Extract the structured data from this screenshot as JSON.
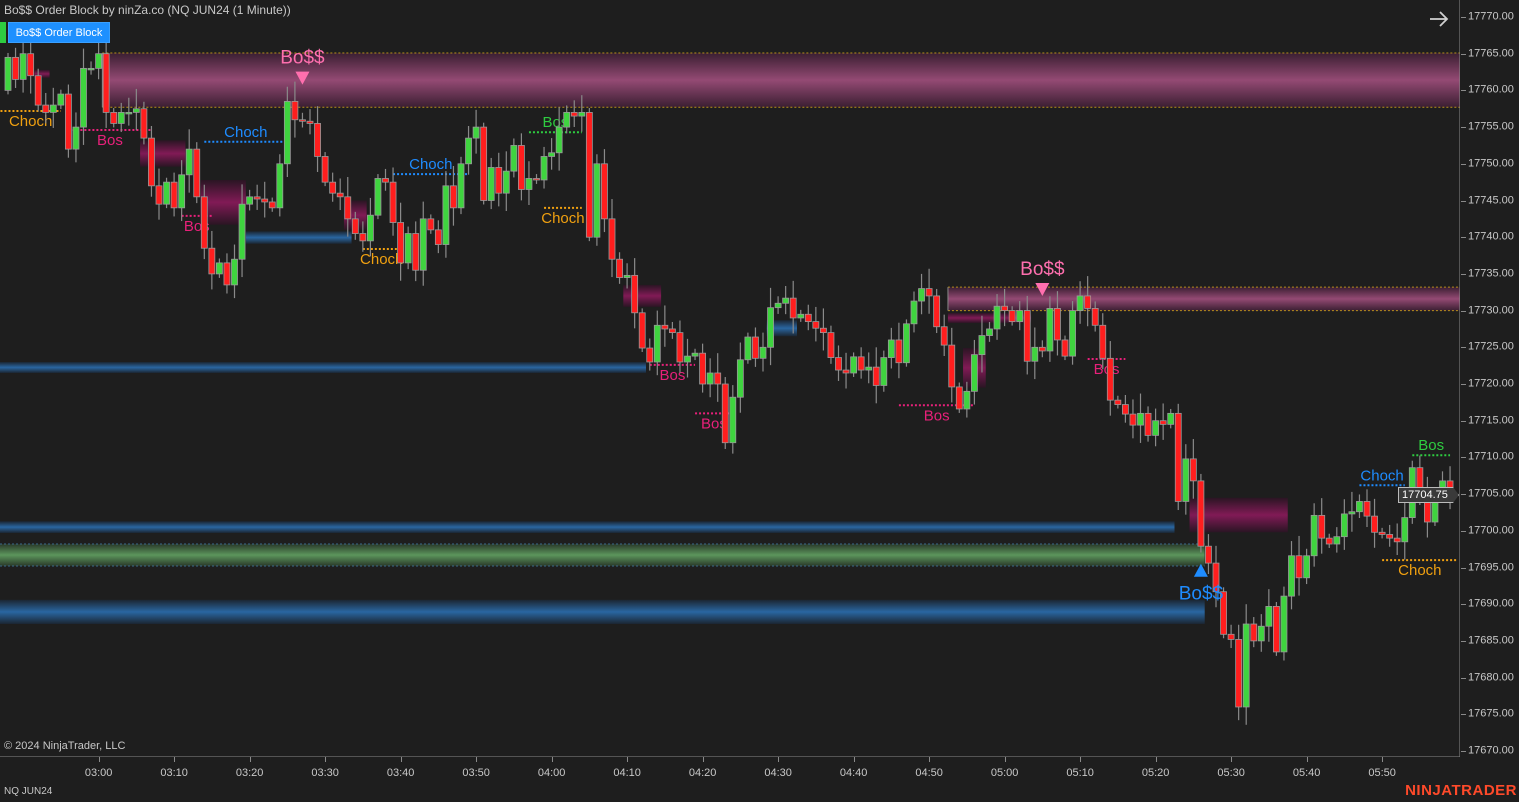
{
  "window": {
    "title": "Bo$$ Order Block by ninZa.co (NQ JUN24 (1 Minute))",
    "indicator_button": "Bo$$ Order Block",
    "copyright": "© 2024 NinjaTrader, LLC",
    "instrument": "NQ JUN24",
    "logo": "NINJATRADER",
    "nav_icon": "arrow-right-icon"
  },
  "colors": {
    "background": "#1e1e1e",
    "bull_candle": "#3fd43f",
    "bear_candle": "#ff1e1e",
    "wick": "#8a8a8a",
    "pink_zone": "#9a4c78",
    "blue_zone": "#2a6aa8",
    "green_zone": "#5f9c5f",
    "magenta_block": "#8c1a5c",
    "bos_bear": "#e8207a",
    "bos_bull": "#2ecc40",
    "choch_bear": "#f0a010",
    "choch_bull": "#1e8cff",
    "signal_bear": "#ff6fae",
    "signal_bull": "#1e8cff",
    "logo": "#ff4a2a"
  },
  "chart_data": {
    "type": "candlestick",
    "title": "Bo$$ Order Block by ninZa.co (NQ JUN24 (1 Minute))",
    "start_time": "02:48",
    "bar_minutes": 1,
    "ylim": [
      17668,
      17772
    ],
    "y_ticks": [
      "17770.00",
      "17765.00",
      "17760.00",
      "17755.00",
      "17750.00",
      "17745.00",
      "17740.00",
      "17735.00",
      "17730.00",
      "17725.00",
      "17720.00",
      "17715.00",
      "17710.00",
      "17705.00",
      "17700.00",
      "17695.00",
      "17690.00",
      "17685.00",
      "17680.00",
      "17675.00",
      "17670.00"
    ],
    "x_ticks": [
      "03:00",
      "03:10",
      "03:20",
      "03:30",
      "03:40",
      "03:50",
      "04:00",
      "04:10",
      "04:20",
      "04:30",
      "04:40",
      "04:50",
      "05:00",
      "05:10",
      "05:20",
      "05:30",
      "05:40",
      "05:50"
    ],
    "last_price": "17704.75",
    "close": [
      17764.5,
      17761.5,
      17765,
      17762,
      17758,
      17757,
      17758,
      17759.5,
      17752,
      17755,
      17763,
      17763,
      17765,
      17757,
      17755.5,
      17757,
      17757,
      17757.5,
      17753.5,
      17747,
      17744.5,
      17747.5,
      17744,
      17748.5,
      17752,
      17745.5,
      17738.5,
      17735,
      17736.5,
      17733.5,
      17737,
      17744.5,
      17745.5,
      17745.2,
      17744.8,
      17744,
      17750,
      17758.5,
      17756,
      17755.8,
      17755.5,
      17751,
      17747.5,
      17746,
      17745.5,
      17742.5,
      17740.5,
      17739.5,
      17743,
      17748,
      17747.5,
      17742,
      17736.5,
      17740.5,
      17735.5,
      17742.5,
      17741,
      17739,
      17747,
      17744,
      17750,
      17753.5,
      17755,
      17745,
      17749.5,
      17746,
      17749,
      17752.5,
      17746.5,
      17748,
      17747.8,
      17751,
      17751.5,
      17755,
      17757,
      17756.5,
      17757,
      17740,
      17750,
      17742.5,
      17737,
      17734.5,
      17734.8,
      17729.7,
      17724.9,
      17723,
      17728,
      17727.5,
      17727,
      17723,
      17723.8,
      17724.2,
      17720,
      17721.5,
      17720,
      17712,
      17718.2,
      17723.3,
      17726.4,
      17723.5,
      17725,
      17730.4,
      17731,
      17731.7,
      17729,
      17729.5,
      17728.5,
      17727.6,
      17727,
      17723.6,
      17721.9,
      17721.5,
      17723.7,
      17721.9,
      17722.3,
      17719.8,
      17723.6,
      17726,
      17722.9,
      17728.2,
      17731.3,
      17733,
      17732,
      17727.8,
      17725.3,
      17719.6,
      17716.6,
      17719,
      17724,
      17726.6,
      17727.5,
      17730.6,
      17730,
      17728.5,
      17730,
      17723.1,
      17725,
      17724.5,
      17730.3,
      17726,
      17723.8,
      17730,
      17732,
      17730.3,
      17728,
      17723.5,
      17717.8,
      17717.2,
      17715.9,
      17714.4,
      17716,
      17713,
      17715,
      17714.5,
      17716,
      17704,
      17709.8,
      17706.8,
      17697.9,
      17695.6,
      17691.7,
      17685.9,
      17685.2,
      17676,
      17687.3,
      17685,
      17687,
      17689.7,
      17683.5,
      17691.1,
      17696.6,
      17693.6,
      17696.6,
      17702.1,
      17699,
      17698.2,
      17699.2,
      17702.3,
      17702.6,
      17704,
      17702,
      17699.8,
      17699.5,
      17699,
      17698.5,
      17701.8,
      17708.6,
      17705,
      17701.2,
      17705.2,
      17706.8,
      17704.75
    ],
    "zones": [
      {
        "kind": "pink",
        "from": "03:01",
        "to": "06:00",
        "top": 17765.1,
        "bottom": 17757.7,
        "border": true
      },
      {
        "kind": "pink",
        "from": "04:53",
        "to": "06:00",
        "top": 17733.2,
        "bottom": 17730.0,
        "border": true
      },
      {
        "kind": "blue",
        "from": "02:47",
        "to": "04:12",
        "top": 17723.0,
        "bottom": 17721.5
      },
      {
        "kind": "blue",
        "from": "02:47",
        "to": "05:22",
        "top": 17701.3,
        "bottom": 17699.7
      },
      {
        "kind": "green",
        "from": "02:47",
        "to": "05:26",
        "top": 17698.2,
        "bottom": 17695.2,
        "border": true
      },
      {
        "kind": "blue",
        "from": "02:47",
        "to": "05:26",
        "top": 17690.6,
        "bottom": 17687.3
      },
      {
        "kind": "blue",
        "from": "03:20",
        "to": "03:33",
        "top": 17740.8,
        "bottom": 17739.1
      },
      {
        "kind": "blue",
        "from": "04:29",
        "to": "04:32",
        "top": 17728.7,
        "bottom": 17726.5
      },
      {
        "kind": "magenta",
        "from": "02:52",
        "to": "02:53",
        "top": 17762.8,
        "bottom": 17761.7
      },
      {
        "kind": "magenta",
        "from": "03:06",
        "to": "03:11",
        "top": 17753.2,
        "bottom": 17749.6
      },
      {
        "kind": "magenta",
        "from": "03:14",
        "to": "03:19",
        "top": 17747.8,
        "bottom": 17741.7
      },
      {
        "kind": "magenta",
        "from": "03:33",
        "to": "03:35",
        "top": 17745.0,
        "bottom": 17741.0
      },
      {
        "kind": "magenta",
        "from": "04:10",
        "to": "04:14",
        "top": 17733.5,
        "bottom": 17730.5
      },
      {
        "kind": "magenta",
        "from": "04:53",
        "to": "05:03",
        "top": 17729.7,
        "bottom": 17728.3
      },
      {
        "kind": "magenta",
        "from": "04:55",
        "to": "04:57",
        "top": 17724.9,
        "bottom": 17719.5
      },
      {
        "kind": "magenta",
        "from": "05:25",
        "to": "05:37",
        "top": 17704.5,
        "bottom": 17699.8
      }
    ],
    "structure": [
      {
        "label": "Choch",
        "type": "choch_bear",
        "price": 17757.2,
        "from": "02:47",
        "to": "02:55"
      },
      {
        "label": "Bos",
        "type": "bos_bear",
        "price": 17754.6,
        "from": "02:56",
        "to": "03:07"
      },
      {
        "label": "Choch",
        "type": "choch_bull",
        "price": 17753.0,
        "from": "03:14",
        "to": "03:25"
      },
      {
        "label": "Bos",
        "type": "bos_bear",
        "price": 17742.9,
        "from": "03:11",
        "to": "03:15"
      },
      {
        "label": "Choch",
        "type": "choch_bear",
        "price": 17738.4,
        "from": "03:35",
        "to": "03:40"
      },
      {
        "label": "Choch",
        "type": "choch_bull",
        "price": 17748.6,
        "from": "03:39",
        "to": "03:49"
      },
      {
        "label": "Bos",
        "type": "bos_bull",
        "price": 17754.3,
        "from": "03:57",
        "to": "04:04"
      },
      {
        "label": "Choch",
        "type": "choch_bear",
        "price": 17744.0,
        "from": "03:59",
        "to": "04:04"
      },
      {
        "label": "Bos",
        "type": "bos_bear",
        "price": 17722.6,
        "from": "04:13",
        "to": "04:19"
      },
      {
        "label": "Bos",
        "type": "bos_bear",
        "price": 17716.0,
        "from": "04:19",
        "to": "04:24"
      },
      {
        "label": "Bos",
        "type": "bos_bear",
        "price": 17717.1,
        "from": "04:46",
        "to": "04:56"
      },
      {
        "label": "Bos",
        "type": "bos_bear",
        "price": 17723.4,
        "from": "05:11",
        "to": "05:16"
      },
      {
        "label": "Choch",
        "type": "choch_bull",
        "price": 17706.2,
        "from": "05:47",
        "to": "05:53"
      },
      {
        "label": "Bos",
        "type": "bos_bull",
        "price": 17710.3,
        "from": "05:54",
        "to": "05:59"
      },
      {
        "label": "Choch",
        "type": "choch_bear",
        "price": 17696.0,
        "from": "05:50",
        "to": "06:00"
      }
    ],
    "signals": [
      {
        "label": "Bo$$",
        "direction": "bear",
        "time": "03:27",
        "price": 17761.6
      },
      {
        "label": "Bo$$",
        "direction": "bear",
        "time": "05:05",
        "price": 17732.8
      },
      {
        "label": "Bo$$",
        "direction": "bull",
        "time": "05:26",
        "price": 17694.7
      }
    ]
  }
}
